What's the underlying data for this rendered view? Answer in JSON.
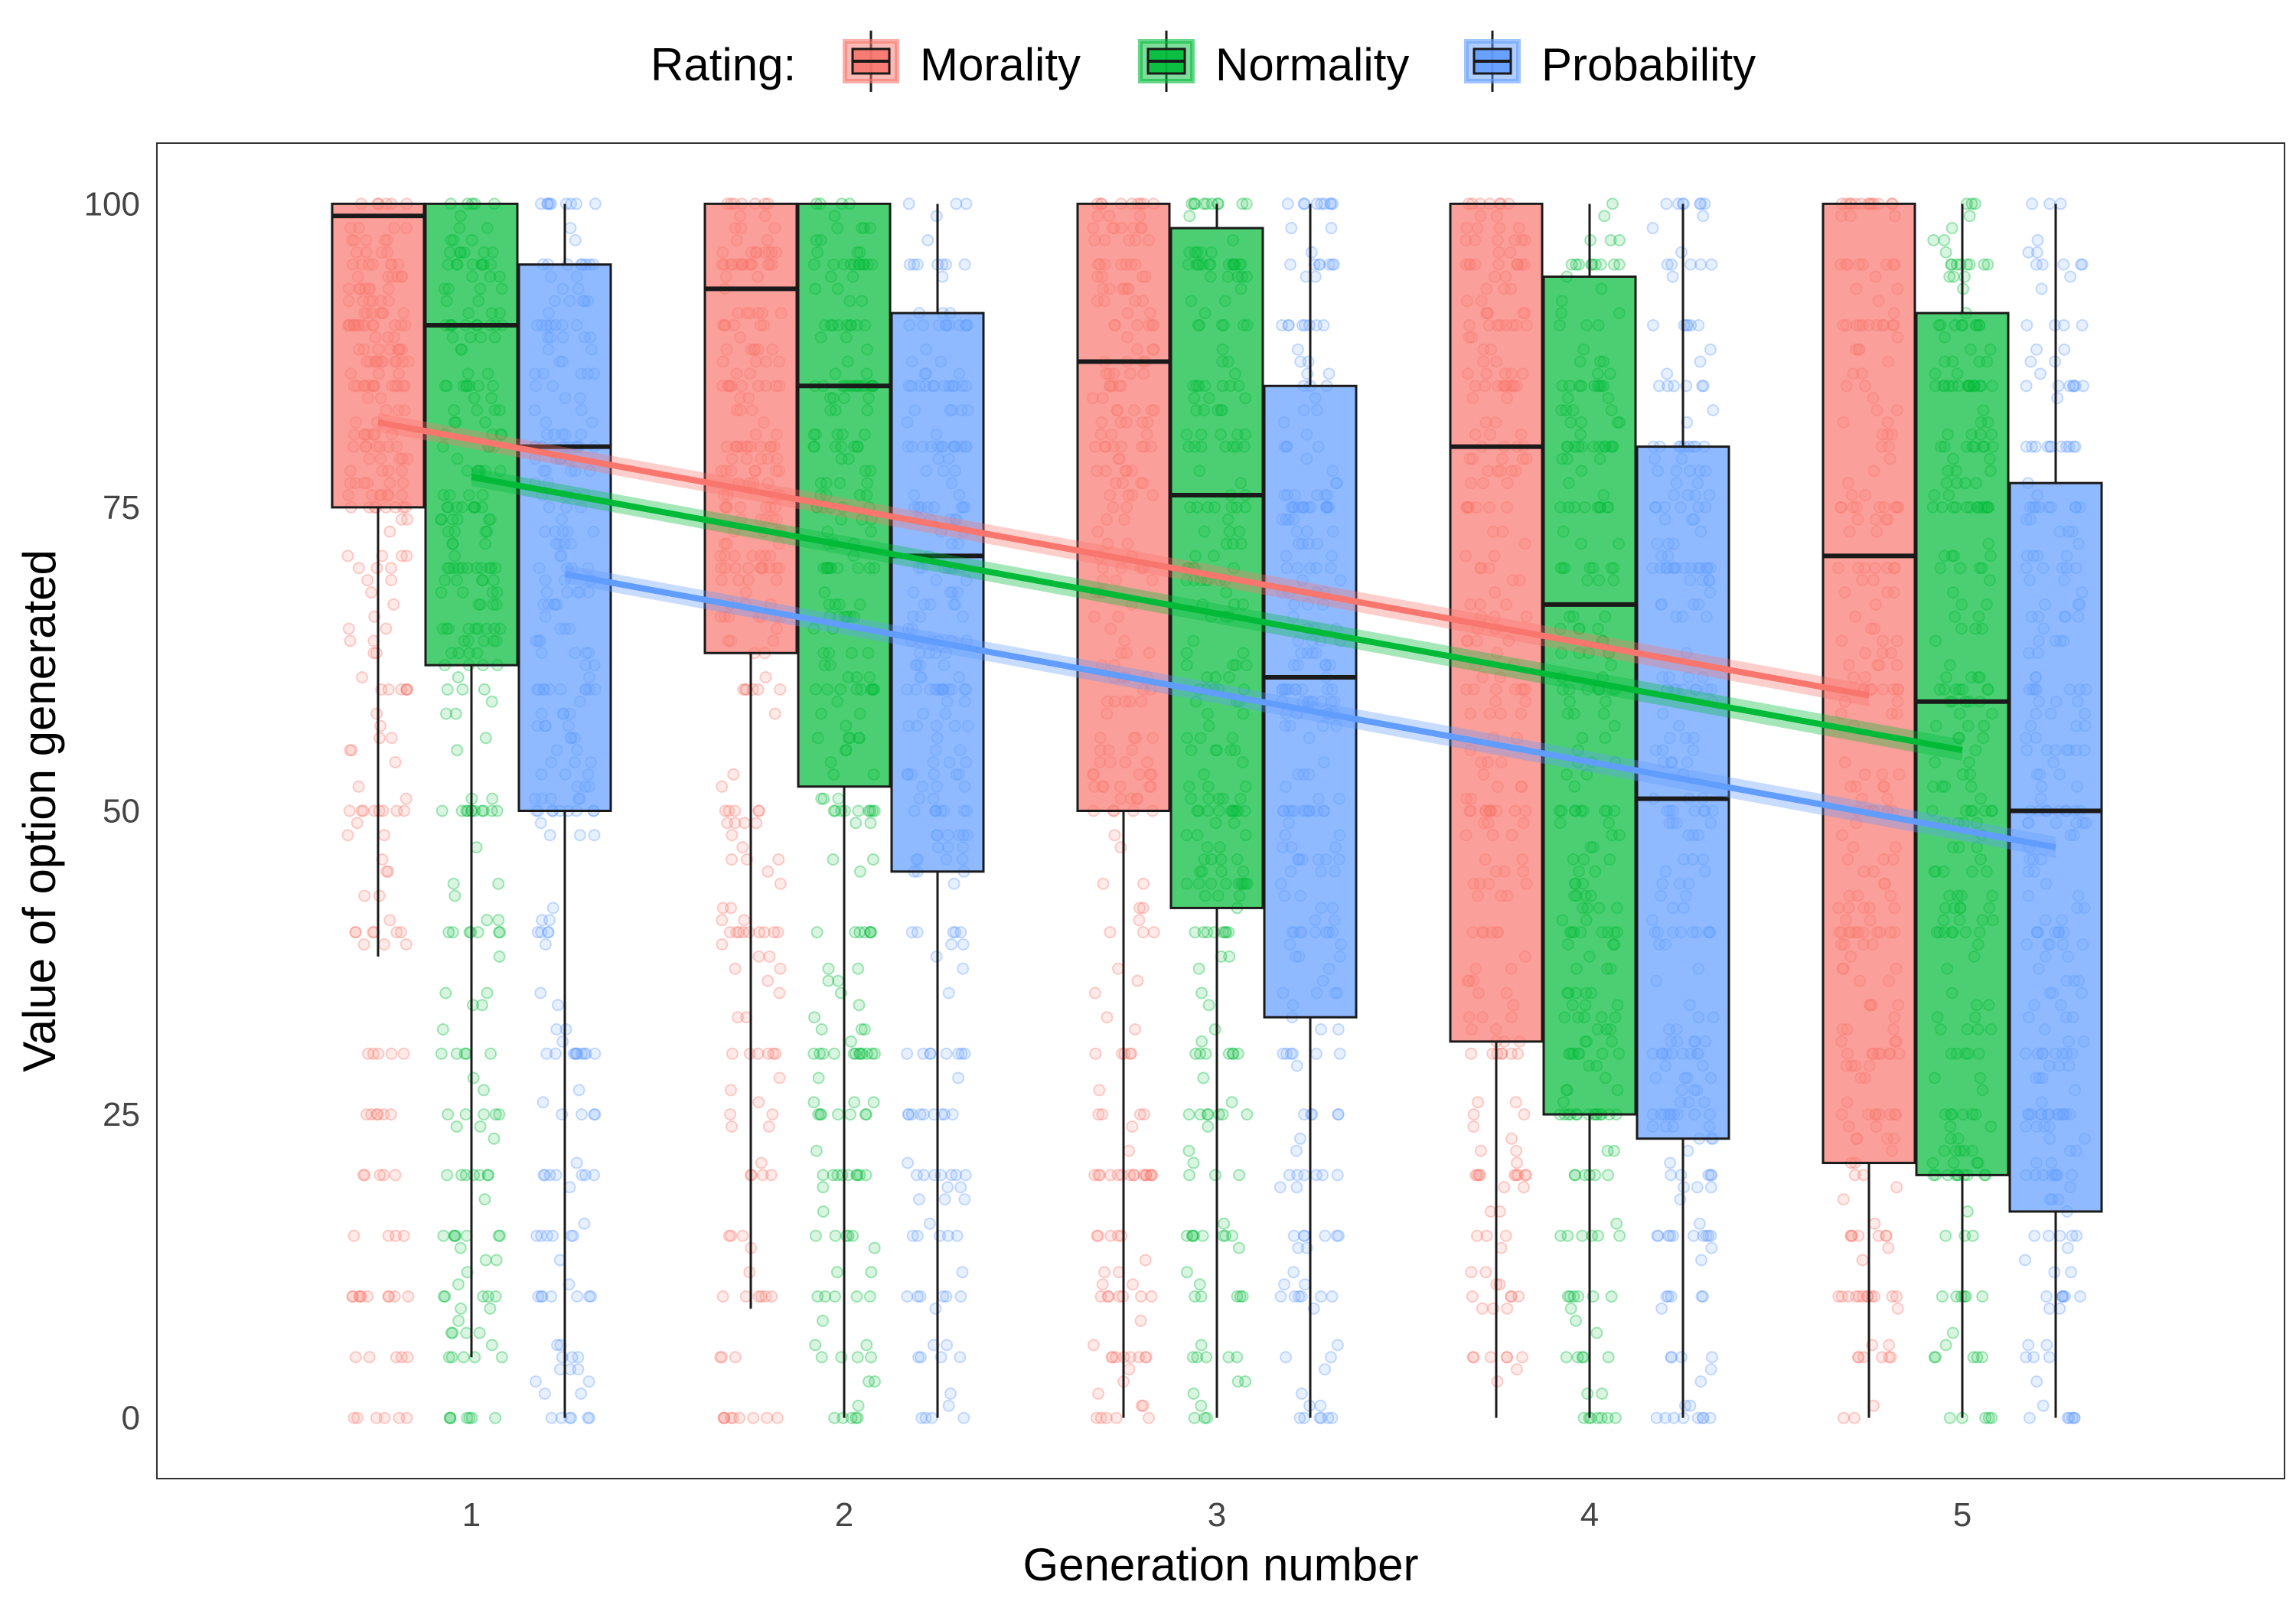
{
  "chart_data": {
    "type": "boxplot",
    "xlabel": "Generation number",
    "ylabel": "Value of option generated",
    "categories": [
      "1",
      "2",
      "3",
      "4",
      "5"
    ],
    "ylim": [
      -5,
      105
    ],
    "y_ticks": [
      0,
      25,
      50,
      75,
      100
    ],
    "grid": false,
    "legend": {
      "title": "Rating:",
      "position": "top",
      "entries": [
        "Morality",
        "Normality",
        "Probability"
      ]
    },
    "series": [
      {
        "name": "Morality",
        "color": "#F8766D",
        "boxes": [
          {
            "generation": 1,
            "whisker_low": 38,
            "q1": 75,
            "median": 99,
            "q3": 100,
            "whisker_high": 100
          },
          {
            "generation": 2,
            "whisker_low": 9,
            "q1": 63,
            "median": 93,
            "q3": 100,
            "whisker_high": 100
          },
          {
            "generation": 3,
            "whisker_low": 0,
            "q1": 50,
            "median": 87,
            "q3": 100,
            "whisker_high": 100
          },
          {
            "generation": 4,
            "whisker_low": 0,
            "q1": 31,
            "median": 80,
            "q3": 100,
            "whisker_high": 100
          },
          {
            "generation": 5,
            "whisker_low": 0,
            "q1": 21,
            "median": 71,
            "q3": 100,
            "whisker_high": 100
          }
        ],
        "trend": {
          "x": [
            1,
            5
          ],
          "y": [
            82,
            59.5
          ]
        }
      },
      {
        "name": "Normality",
        "color": "#00BA38",
        "boxes": [
          {
            "generation": 1,
            "whisker_low": 5,
            "q1": 62,
            "median": 90,
            "q3": 100,
            "whisker_high": 100
          },
          {
            "generation": 2,
            "whisker_low": 0,
            "q1": 52,
            "median": 85,
            "q3": 100,
            "whisker_high": 100
          },
          {
            "generation": 3,
            "whisker_low": 0,
            "q1": 42,
            "median": 76,
            "q3": 98,
            "whisker_high": 100
          },
          {
            "generation": 4,
            "whisker_low": 0,
            "q1": 25,
            "median": 67,
            "q3": 94,
            "whisker_high": 100
          },
          {
            "generation": 5,
            "whisker_low": 0,
            "q1": 20,
            "median": 59,
            "q3": 91,
            "whisker_high": 100
          }
        ],
        "trend": {
          "x": [
            1,
            5
          ],
          "y": [
            77.5,
            55
          ]
        }
      },
      {
        "name": "Probability",
        "color": "#619CFF",
        "boxes": [
          {
            "generation": 1,
            "whisker_low": 0,
            "q1": 50,
            "median": 80,
            "q3": 95,
            "whisker_high": 100
          },
          {
            "generation": 2,
            "whisker_low": 0,
            "q1": 45,
            "median": 71,
            "q3": 91,
            "whisker_high": 100
          },
          {
            "generation": 3,
            "whisker_low": 0,
            "q1": 33,
            "median": 61,
            "q3": 85,
            "whisker_high": 100
          },
          {
            "generation": 4,
            "whisker_low": 0,
            "q1": 23,
            "median": 51,
            "q3": 80,
            "whisker_high": 100
          },
          {
            "generation": 5,
            "whisker_low": 0,
            "q1": 17,
            "median": 50,
            "q3": 77,
            "whisker_high": 100
          }
        ],
        "trend": {
          "x": [
            1,
            5
          ],
          "y": [
            69.5,
            47
          ]
        }
      }
    ],
    "jitter_points": {
      "opacity": 0.15,
      "note_values": [
        0,
        5,
        10,
        15,
        20,
        25,
        30,
        40,
        50,
        60,
        70,
        75,
        80,
        85,
        90,
        95,
        100
      ]
    }
  }
}
